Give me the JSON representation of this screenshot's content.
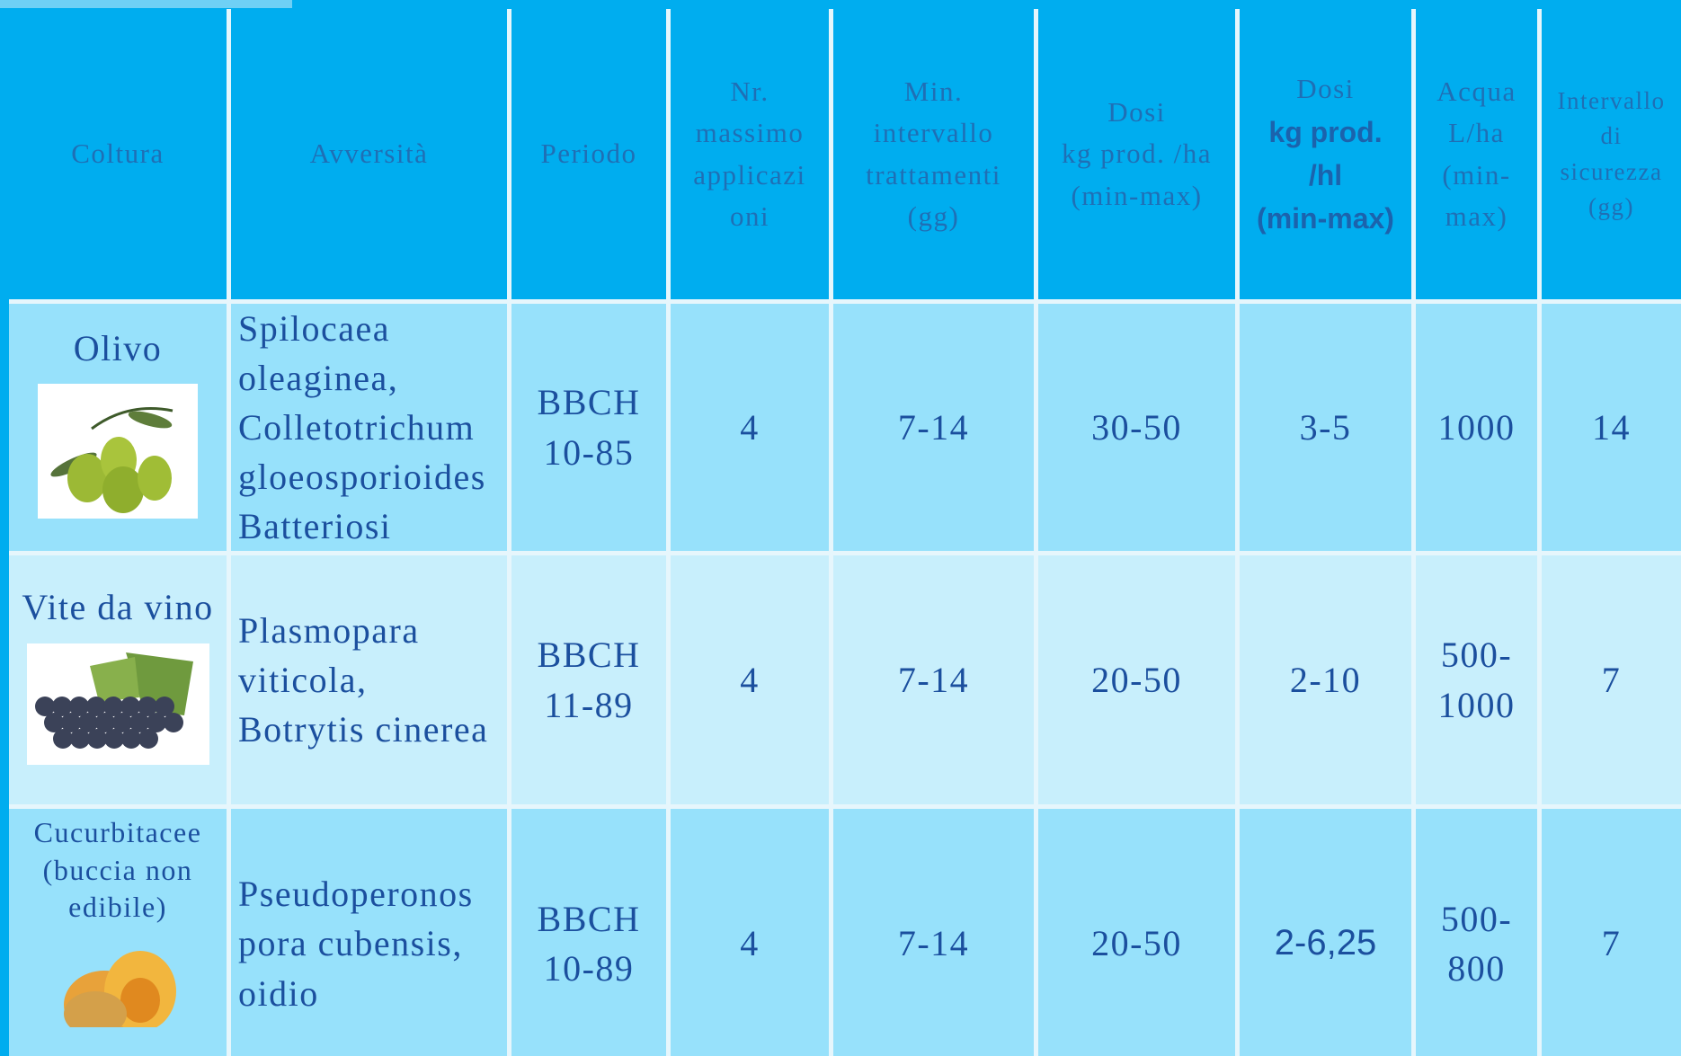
{
  "table": {
    "header": [
      [
        "Coltura"
      ],
      [
        "Avversità"
      ],
      [
        "Periodo"
      ],
      [
        "Nr.",
        "massimo",
        "applicazi",
        "oni"
      ],
      [
        "Min.",
        "intervallo",
        "trattamenti",
        "(gg)"
      ],
      [
        "Dosi",
        "kg prod. /ha",
        "(min-max)"
      ],
      [
        "Dosi",
        "kg prod.",
        "/hl",
        "(min-max)"
      ],
      [
        "Acqua",
        "L/ha",
        "(min-",
        "max)"
      ],
      [
        "Intervallo",
        "di",
        "sicurezza",
        "(gg)"
      ]
    ],
    "rows": [
      [
        [
          "Olivo"
        ],
        [
          "Spilocaea",
          "oleaginea,",
          "Colletotrichum",
          "gloeosporioides",
          "Batteriosi"
        ],
        [
          "BBCH",
          "10-85"
        ],
        [
          "4"
        ],
        [
          "7-14"
        ],
        [
          "30-50"
        ],
        [
          "3-5"
        ],
        [
          "1000"
        ],
        [
          "14"
        ]
      ],
      [
        [
          "Vite da vino"
        ],
        [
          "Plasmopara",
          "viticola,",
          "Botrytis cinerea"
        ],
        [
          "BBCH",
          "11-89"
        ],
        [
          "4"
        ],
        [
          "7-14"
        ],
        [
          "20-50"
        ],
        [
          "2-10"
        ],
        [
          "500-",
          "1000"
        ],
        [
          "7"
        ]
      ],
      [
        [
          "Cucurbitacee",
          "(buccia non",
          "edibile)"
        ],
        [
          "Pseudoperonos",
          "pora cubensis,",
          "oidio"
        ],
        [
          "BBCH",
          "10-89"
        ],
        [
          "4"
        ],
        [
          "7-14"
        ],
        [
          "20-50"
        ],
        [
          "2-6,25"
        ],
        [
          "500-",
          "800"
        ],
        [
          "7"
        ]
      ]
    ]
  }
}
